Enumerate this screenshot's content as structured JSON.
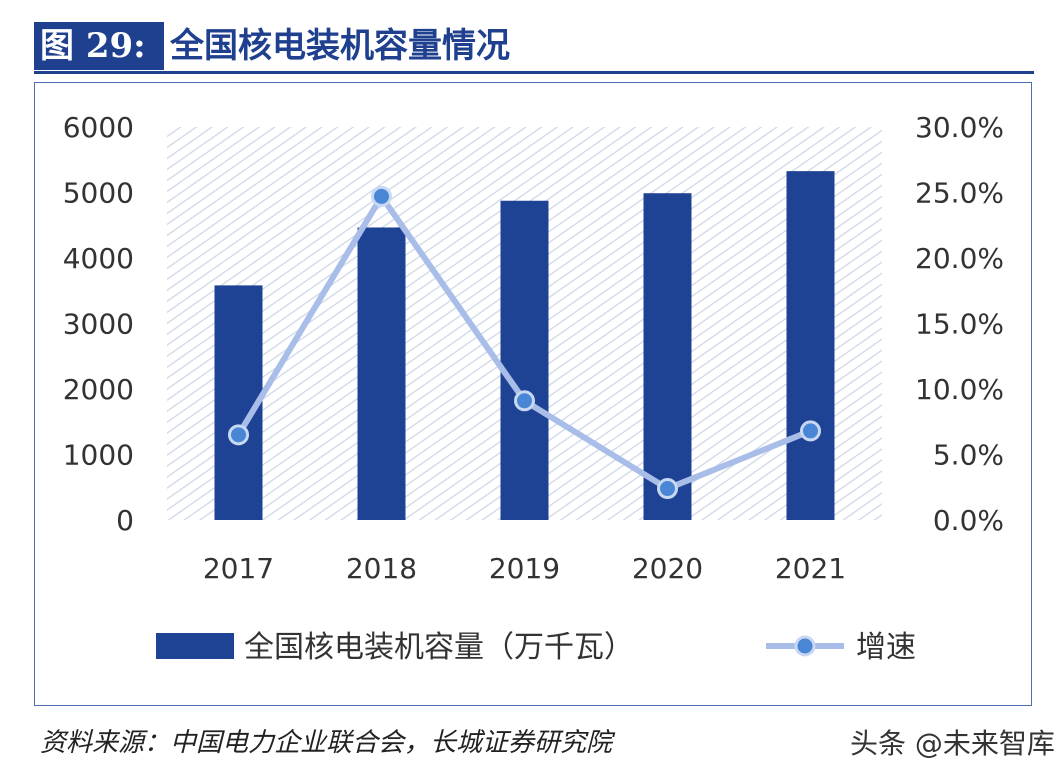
{
  "figure": {
    "label": "图 29:",
    "title": "全国核电装机容量情况",
    "source": "资料来源：中国电力企业联合会，长城证券研究院",
    "watermark": "头条 @未来智库"
  },
  "chart_data": {
    "type": "bar",
    "categories": [
      "2017",
      "2018",
      "2019",
      "2020",
      "2021"
    ],
    "series": [
      {
        "name": "全国核电装机容量（万千瓦）",
        "type": "bar",
        "axis": "left",
        "values": [
          3582,
          4466,
          4874,
          4989,
          5326
        ]
      },
      {
        "name": "增速",
        "type": "line",
        "axis": "right",
        "values": [
          6.5,
          24.7,
          9.1,
          2.4,
          6.8
        ]
      }
    ],
    "left_axis": {
      "ylim": [
        0,
        6000
      ],
      "ticks": [
        "0",
        "1000",
        "2000",
        "3000",
        "4000",
        "5000",
        "6000"
      ]
    },
    "right_axis": {
      "ylim": [
        0,
        30
      ],
      "ticks": [
        "0.0%",
        "5.0%",
        "10.0%",
        "15.0%",
        "20.0%",
        "25.0%",
        "30.0%"
      ]
    },
    "legend_position": "bottom",
    "colors": {
      "bar": "#1f4394",
      "line": "#a8bde8",
      "marker": "#4a86d6",
      "hatch": "#cdd6e6"
    }
  }
}
